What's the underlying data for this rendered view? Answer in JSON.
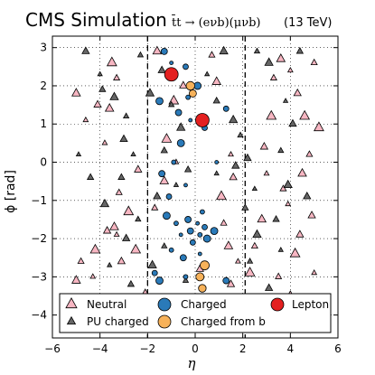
{
  "header": {
    "title": "CMS Simulation",
    "process": "t̄t → (eνb)(μνb)",
    "energy": "(13 TeV)"
  },
  "chart_data": {
    "type": "scatter",
    "xlabel": "η",
    "ylabel": "ϕ [rad]",
    "xlim": [
      -6,
      6
    ],
    "ylim": [
      -4.6,
      3.3
    ],
    "xticks": [
      "−6",
      "−4",
      "−2",
      "0",
      "2",
      "4",
      "6"
    ],
    "yticks": [
      "−4",
      "−3",
      "−2",
      "−1",
      "0",
      "1",
      "2",
      "3"
    ],
    "grid": true,
    "legend_position": "bottom",
    "reference_lines": {
      "x": [
        -2.0,
        2.1
      ],
      "style": "dashed"
    },
    "colors": {
      "neutral": "#f7b6c2",
      "pu_charged": "#666666",
      "charged": "#2a7ab9",
      "charged_from_b": "#f7b25a",
      "lepton": "#e42020"
    },
    "series": [
      {
        "name": "Neutral",
        "marker": "triangle",
        "points": [
          [
            -5.0,
            1.8
          ],
          [
            -4.6,
            1.1
          ],
          [
            -4.1,
            1.5
          ],
          [
            -3.5,
            2.6
          ],
          [
            -3.3,
            2.2
          ],
          [
            -3.6,
            1.4
          ],
          [
            -3.8,
            0.5
          ],
          [
            -2.4,
            -0.2
          ],
          [
            -2.8,
            -1.3
          ],
          [
            -3.2,
            -0.8
          ],
          [
            -3.4,
            -1.7
          ],
          [
            -3.3,
            -1.9
          ],
          [
            -3.7,
            -1.8
          ],
          [
            -4.2,
            -2.3
          ],
          [
            -4.8,
            -2.6
          ],
          [
            -5.0,
            -3.1
          ],
          [
            -4.3,
            -3.0
          ],
          [
            -3.1,
            -2.6
          ],
          [
            -2.5,
            -2.3
          ],
          [
            -1.7,
            -1.2
          ],
          [
            -1.3,
            -0.5
          ],
          [
            -0.8,
            0.0
          ],
          [
            -0.5,
            2.0
          ],
          [
            -0.9,
            1.6
          ],
          [
            0.7,
            2.8
          ],
          [
            0.9,
            2.1
          ],
          [
            1.5,
            0.2
          ],
          [
            1.6,
            -0.4
          ],
          [
            1.1,
            -0.9
          ],
          [
            1.2,
            -1.6
          ],
          [
            1.4,
            -2.2
          ],
          [
            1.8,
            -2.6
          ],
          [
            1.5,
            -3.2
          ],
          [
            2.3,
            -2.9
          ],
          [
            2.5,
            -2.2
          ],
          [
            2.8,
            -1.5
          ],
          [
            3.0,
            -0.3
          ],
          [
            2.9,
            0.4
          ],
          [
            3.2,
            1.2
          ],
          [
            3.3,
            2.2
          ],
          [
            3.6,
            2.7
          ],
          [
            4.0,
            2.4
          ],
          [
            4.3,
            1.8
          ],
          [
            4.6,
            1.2
          ],
          [
            4.8,
            0.2
          ],
          [
            4.5,
            -0.3
          ],
          [
            3.9,
            -1.1
          ],
          [
            4.4,
            -1.9
          ],
          [
            4.2,
            -2.4
          ],
          [
            3.5,
            -3.0
          ],
          [
            4.0,
            -3.5
          ],
          [
            5.0,
            -2.9
          ],
          [
            4.9,
            -1.4
          ],
          [
            5.2,
            0.9
          ],
          [
            5.0,
            2.6
          ],
          [
            -1.6,
            2.9
          ],
          [
            -2.1,
            -3.4
          ],
          [
            0.2,
            -2.8
          ],
          [
            -1.2,
            0.6
          ],
          [
            3.7,
            -0.7
          ]
        ]
      },
      {
        "name": "PU charged",
        "marker": "triangle",
        "points": [
          [
            -4.6,
            2.9
          ],
          [
            -4.0,
            2.3
          ],
          [
            -3.9,
            1.9
          ],
          [
            -3.4,
            1.7
          ],
          [
            -2.9,
            1.2
          ],
          [
            -3.0,
            0.6
          ],
          [
            -2.6,
            0.2
          ],
          [
            -4.4,
            -0.4
          ],
          [
            -3.8,
            -1.1
          ],
          [
            -2.4,
            -1.5
          ],
          [
            -2.9,
            -2.0
          ],
          [
            -3.6,
            -2.7
          ],
          [
            -2.7,
            -3.2
          ],
          [
            -1.8,
            -2.7
          ],
          [
            -1.3,
            -2.2
          ],
          [
            -1.6,
            -0.9
          ],
          [
            -0.8,
            -0.6
          ],
          [
            -1.3,
            0.3
          ],
          [
            -0.6,
            0.9
          ],
          [
            -1.0,
            1.5
          ],
          [
            -1.4,
            2.4
          ],
          [
            0.5,
            2.3
          ],
          [
            0.9,
            1.6
          ],
          [
            1.6,
            1.1
          ],
          [
            1.9,
            0.7
          ],
          [
            2.2,
            0.1
          ],
          [
            2.5,
            -0.7
          ],
          [
            2.1,
            -1.2
          ],
          [
            2.6,
            -1.9
          ],
          [
            2.3,
            -2.6
          ],
          [
            3.1,
            -3.3
          ],
          [
            3.6,
            -2.3
          ],
          [
            3.4,
            -1.5
          ],
          [
            3.9,
            -0.6
          ],
          [
            3.6,
            0.3
          ],
          [
            4.1,
            1.0
          ],
          [
            3.8,
            1.6
          ],
          [
            4.4,
            2.9
          ],
          [
            3.1,
            2.6
          ],
          [
            2.6,
            2.9
          ],
          [
            1.7,
            -0.1
          ],
          [
            0.9,
            -0.3
          ],
          [
            -0.3,
            -0.2
          ],
          [
            -1.9,
            1.8
          ],
          [
            -2.3,
            2.8
          ],
          [
            4.7,
            -0.9
          ],
          [
            -4.9,
            0.2
          ],
          [
            -3.1,
            -0.4
          ],
          [
            1.2,
            2.9
          ],
          [
            -0.4,
            -3.1
          ]
        ]
      },
      {
        "name": "Charged",
        "marker": "circle",
        "points": [
          [
            -1.3,
            2.9
          ],
          [
            -1.0,
            2.6
          ],
          [
            -0.4,
            2.5
          ],
          [
            0.1,
            2.0
          ],
          [
            -0.3,
            1.7
          ],
          [
            -0.7,
            1.3
          ],
          [
            -0.2,
            1.1
          ],
          [
            0.4,
            0.9
          ],
          [
            -0.6,
            0.5
          ],
          [
            -0.9,
            0.0
          ],
          [
            -1.4,
            -0.3
          ],
          [
            -0.4,
            -0.6
          ],
          [
            -1.1,
            -0.9
          ],
          [
            -1.2,
            -1.4
          ],
          [
            -0.8,
            -1.6
          ],
          [
            -0.3,
            -1.5
          ],
          [
            0.1,
            -1.6
          ],
          [
            0.4,
            -1.7
          ],
          [
            0.8,
            -1.8
          ],
          [
            0.2,
            -1.9
          ],
          [
            -0.2,
            -1.8
          ],
          [
            -0.6,
            -1.9
          ],
          [
            -0.1,
            -2.1
          ],
          [
            0.5,
            -2.0
          ],
          [
            -1.0,
            -2.3
          ],
          [
            -0.5,
            -2.5
          ],
          [
            0.2,
            -2.4
          ],
          [
            -1.7,
            -2.9
          ],
          [
            -1.5,
            -3.1
          ],
          [
            -0.4,
            -3.0
          ],
          [
            1.3,
            -3.1
          ],
          [
            0.9,
            0.0
          ],
          [
            1.3,
            1.4
          ],
          [
            -1.5,
            1.6
          ],
          [
            0.3,
            -1.3
          ]
        ]
      },
      {
        "name": "Charged from b",
        "marker": "circle",
        "points": [
          [
            -0.2,
            2.0
          ],
          [
            -0.1,
            1.8
          ],
          [
            0.2,
            -3.0
          ],
          [
            0.4,
            -2.7
          ],
          [
            0.3,
            -3.3
          ]
        ]
      },
      {
        "name": "Lepton",
        "marker": "circle",
        "points": [
          [
            -1.0,
            2.3
          ],
          [
            0.3,
            1.1
          ]
        ]
      }
    ]
  }
}
